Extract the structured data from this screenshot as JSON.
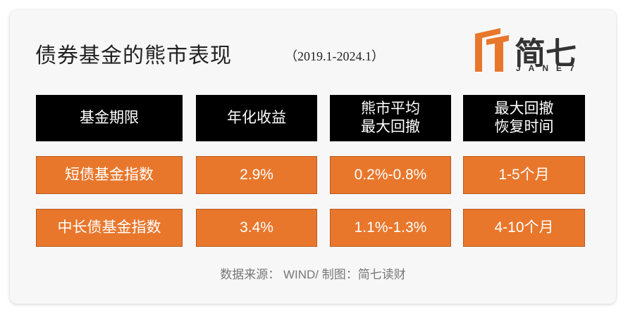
{
  "header": {
    "title": "债券基金的熊市表现",
    "subtitle": "（2019.1-2024.1）"
  },
  "logo": {
    "name": "简七",
    "latin": "JANE7"
  },
  "table": {
    "columns": [
      [
        "基金期限"
      ],
      [
        "年化收益"
      ],
      [
        "熊市平均",
        "最大回撤"
      ],
      [
        "最大回撤",
        "恢复时间"
      ]
    ],
    "rows": [
      [
        "短债基金指数",
        "2.9%",
        "0.2%-0.8%",
        "1-5个月"
      ],
      [
        "中长债基金指数",
        "3.4%",
        "1.1%-1.3%",
        "4-10个月"
      ]
    ]
  },
  "footer": {
    "source": "数据来源： WIND/ 制图：简七读财"
  }
}
